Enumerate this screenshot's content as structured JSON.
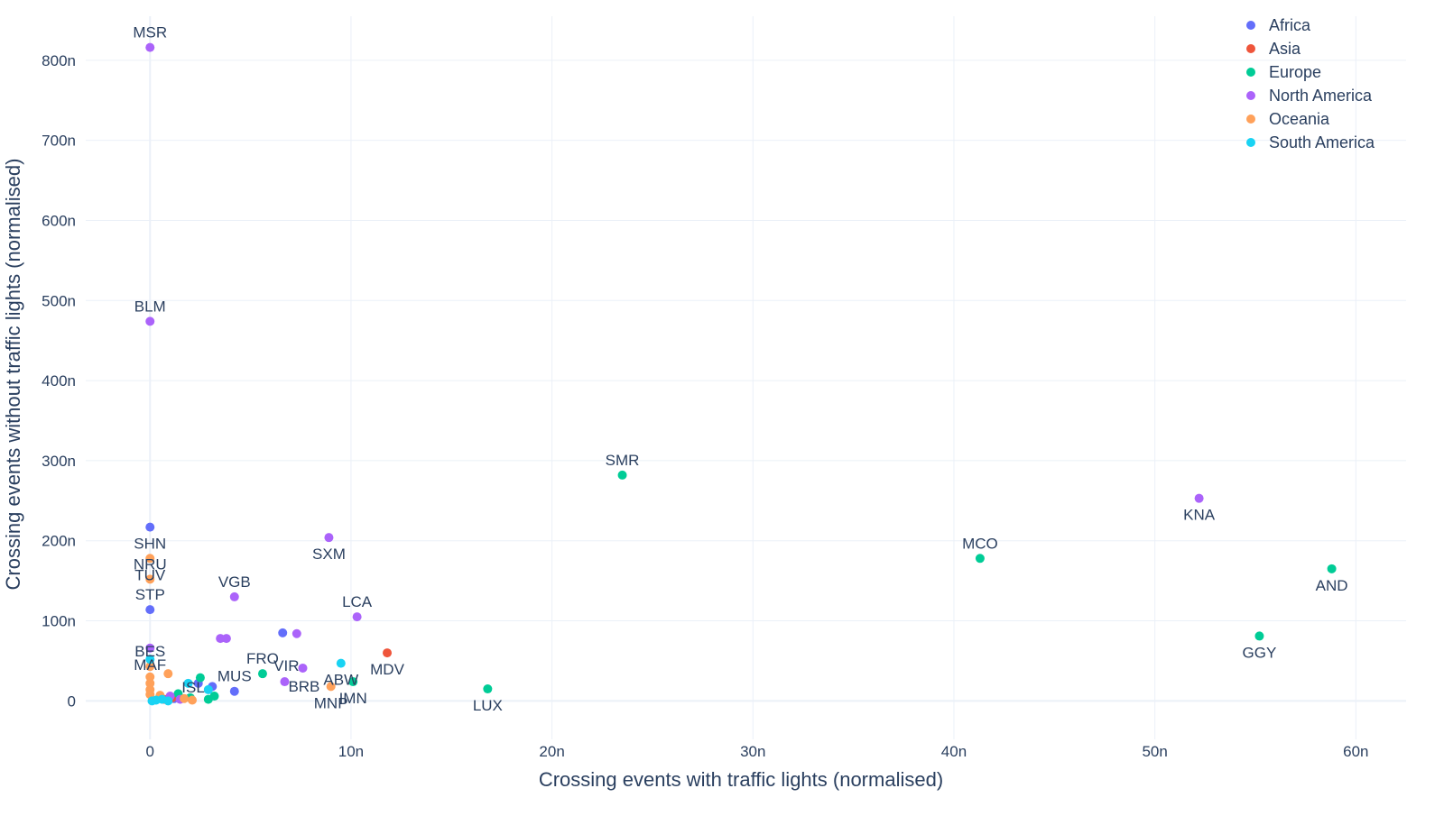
{
  "chart_data": {
    "type": "scatter",
    "title": "",
    "xlabel": "Crossing events with traffic lights (normalised)",
    "ylabel": "Crossing events without traffic lights (normalised)",
    "xlim": [
      -3.2,
      62.5
    ],
    "ylim": [
      -48,
      855
    ],
    "x_unit": "n",
    "y_unit": "n",
    "grid": true,
    "legend_position": "top-right",
    "x_ticks": [
      0,
      10,
      20,
      30,
      40,
      50,
      60
    ],
    "x_tick_labels": [
      "0",
      "10n",
      "20n",
      "30n",
      "40n",
      "50n",
      "60n"
    ],
    "y_ticks": [
      0,
      100,
      200,
      300,
      400,
      500,
      600,
      700,
      800
    ],
    "y_tick_labels": [
      "0",
      "100n",
      "200n",
      "300n",
      "400n",
      "500n",
      "600n",
      "700n",
      "800n"
    ],
    "colors": {
      "Africa": "#636efa",
      "Asia": "#ef553b",
      "Europe": "#00cc96",
      "North America": "#ab63fa",
      "Oceania": "#ffa15a",
      "South America": "#19d3f3",
      "text": "#2a3f5f",
      "grid": "#ebf0f8"
    },
    "series": [
      {
        "name": "Africa",
        "points": [
          {
            "x": 0,
            "y": 217,
            "label": "SHN",
            "pos": "below"
          },
          {
            "x": 0,
            "y": 114,
            "label": "STP",
            "pos": "above"
          },
          {
            "x": 4.2,
            "y": 12,
            "label": "MUS",
            "pos": "above"
          },
          {
            "x": 6.6,
            "y": 85,
            "label": "",
            "pos": ""
          },
          {
            "x": 3.1,
            "y": 18,
            "label": "",
            "pos": ""
          },
          {
            "x": 1.2,
            "y": 3,
            "label": "",
            "pos": ""
          },
          {
            "x": 2.4,
            "y": 22,
            "label": "",
            "pos": ""
          }
        ]
      },
      {
        "name": "Asia",
        "points": [
          {
            "x": 11.8,
            "y": 60,
            "label": "MDV",
            "pos": "below"
          },
          {
            "x": 1.1,
            "y": 4,
            "label": "",
            "pos": ""
          },
          {
            "x": 0.7,
            "y": 2,
            "label": "",
            "pos": ""
          }
        ]
      },
      {
        "name": "Europe",
        "points": [
          {
            "x": 23.5,
            "y": 282,
            "label": "SMR",
            "pos": "above"
          },
          {
            "x": 41.3,
            "y": 178,
            "label": "MCO",
            "pos": "above"
          },
          {
            "x": 58.8,
            "y": 165,
            "label": "AND",
            "pos": "below"
          },
          {
            "x": 55.2,
            "y": 81,
            "label": "GGY",
            "pos": "below"
          },
          {
            "x": 16.8,
            "y": 15,
            "label": "LUX",
            "pos": "below"
          },
          {
            "x": 10.1,
            "y": 24,
            "label": "IMN",
            "pos": "below"
          },
          {
            "x": 5.6,
            "y": 34,
            "label": "FRO",
            "pos": "above"
          },
          {
            "x": 2.5,
            "y": 29,
            "label": "",
            "pos": ""
          },
          {
            "x": 3.2,
            "y": 6,
            "label": "",
            "pos": ""
          },
          {
            "x": 2.9,
            "y": 2,
            "label": "",
            "pos": ""
          },
          {
            "x": 1.4,
            "y": 9,
            "label": "",
            "pos": ""
          },
          {
            "x": 2.0,
            "y": 4,
            "label": "",
            "pos": ""
          }
        ]
      },
      {
        "name": "North America",
        "points": [
          {
            "x": 0,
            "y": 816,
            "label": "MSR",
            "pos": "above"
          },
          {
            "x": 0,
            "y": 474,
            "label": "BLM",
            "pos": "above"
          },
          {
            "x": 8.9,
            "y": 204,
            "label": "SXM",
            "pos": "below"
          },
          {
            "x": 4.2,
            "y": 130,
            "label": "VGB",
            "pos": "above"
          },
          {
            "x": 10.3,
            "y": 105,
            "label": "LCA",
            "pos": "above"
          },
          {
            "x": 0,
            "y": 66,
            "label": "MAF",
            "pos": "below"
          },
          {
            "x": 7.6,
            "y": 41,
            "label": "VIR",
            "pos": "left"
          },
          {
            "x": 6.7,
            "y": 24,
            "label": "BRB",
            "pos": "right"
          },
          {
            "x": 3.5,
            "y": 78,
            "label": "",
            "pos": ""
          },
          {
            "x": 3.8,
            "y": 78,
            "label": "",
            "pos": ""
          },
          {
            "x": 7.3,
            "y": 84,
            "label": "",
            "pos": ""
          },
          {
            "x": 52.2,
            "y": 253,
            "label": "KNA",
            "pos": "below"
          },
          {
            "x": 1.0,
            "y": 6,
            "label": "",
            "pos": ""
          },
          {
            "x": 1.5,
            "y": 2,
            "label": "",
            "pos": ""
          }
        ]
      },
      {
        "name": "Oceania",
        "points": [
          {
            "x": 0,
            "y": 178,
            "label": "TUV",
            "pos": "below"
          },
          {
            "x": 0,
            "y": 152,
            "label": "NRU",
            "pos": "above"
          },
          {
            "x": 0,
            "y": 43,
            "label": "BES",
            "pos": "above"
          },
          {
            "x": 9.0,
            "y": 18,
            "label": "MNP",
            "pos": "below"
          },
          {
            "x": 0.9,
            "y": 34,
            "label": "",
            "pos": ""
          },
          {
            "x": 0,
            "y": 30,
            "label": "",
            "pos": ""
          },
          {
            "x": 0,
            "y": 22,
            "label": "",
            "pos": ""
          },
          {
            "x": 0,
            "y": 14,
            "label": "",
            "pos": ""
          },
          {
            "x": 0,
            "y": 8,
            "label": "",
            "pos": ""
          },
          {
            "x": 0.5,
            "y": 7,
            "label": "",
            "pos": ""
          },
          {
            "x": 1.7,
            "y": 3,
            "label": "",
            "pos": ""
          },
          {
            "x": 2.1,
            "y": 1,
            "label": "",
            "pos": ""
          }
        ]
      },
      {
        "name": "South America",
        "points": [
          {
            "x": 9.5,
            "y": 47,
            "label": "ABW",
            "pos": "below"
          },
          {
            "x": 0,
            "y": 52,
            "label": "",
            "pos": ""
          },
          {
            "x": 1.9,
            "y": 22,
            "label": "",
            "pos": ""
          },
          {
            "x": 2.9,
            "y": 14,
            "label": "ISL",
            "pos": "left"
          },
          {
            "x": 0.3,
            "y": 1,
            "label": "",
            "pos": ""
          },
          {
            "x": 0.6,
            "y": 2,
            "label": "",
            "pos": ""
          },
          {
            "x": 0.9,
            "y": 0,
            "label": "",
            "pos": ""
          },
          {
            "x": 0.1,
            "y": 0,
            "label": "",
            "pos": ""
          }
        ]
      }
    ]
  }
}
